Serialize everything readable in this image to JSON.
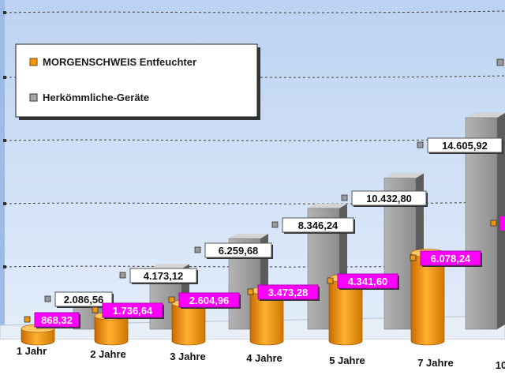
{
  "chart_data": {
    "type": "bar",
    "categories": [
      "1 Jahr",
      "2 Jahre",
      "3 Jahre",
      "4 Jahre",
      "5 Jahre",
      "7 Jahre",
      "10"
    ],
    "series": [
      {
        "name": "MORGENSCHWEIS Entfeuchter",
        "values": [
          868.32,
          1736.64,
          2604.96,
          3473.28,
          4341.6,
          6078.24,
          null
        ],
        "labels": [
          "868,32",
          "1.736,64",
          "2.604,96",
          "3.473,28",
          "4.341,60",
          "6.078,24",
          ""
        ],
        "color": "#f0960f",
        "label_color": "#ff00ff"
      },
      {
        "name": "Herkömmliche-Geräte",
        "values": [
          2086.56,
          4173.12,
          6259.68,
          8346.24,
          10432.8,
          14605.92,
          null
        ],
        "labels": [
          "2.086,56",
          "4.173,12",
          "6.259,68",
          "8.346,24",
          "10.432,80",
          "14.605,92",
          ""
        ],
        "color": "#a8a8a8",
        "label_color": "#111111"
      }
    ],
    "ylim": [
      0,
      16000
    ],
    "grid": true,
    "legend_position": "top-left",
    "background": "#cfe0f7"
  }
}
